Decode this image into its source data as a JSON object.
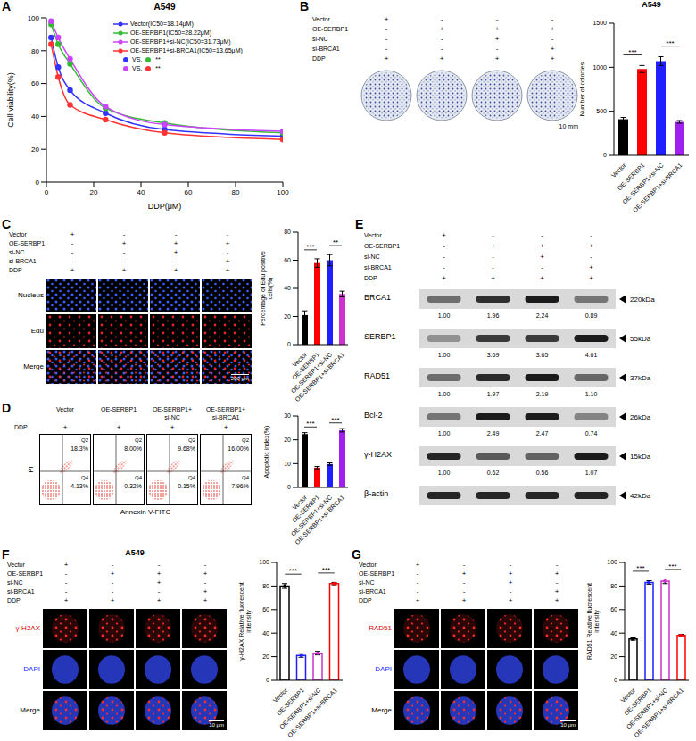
{
  "panel_letters": [
    "A",
    "B",
    "C",
    "D",
    "E",
    "F",
    "G"
  ],
  "conditions": [
    {
      "label": "Vector",
      "marks": [
        "+",
        "-",
        "-",
        "-"
      ]
    },
    {
      "label": "OE-SERBP1",
      "marks": [
        "-",
        "+",
        "+",
        "+"
      ]
    },
    {
      "label": "si-NC",
      "marks": [
        "-",
        "-",
        "+",
        "-"
      ]
    },
    {
      "label": "si-BRCA1",
      "marks": [
        "-",
        "-",
        "-",
        "+"
      ]
    },
    {
      "label": "DDP",
      "marks": [
        "+",
        "+",
        "+",
        "+"
      ]
    }
  ],
  "chart_data": [
    {
      "type": "line",
      "title": "A549",
      "x_label": "DDP(μM)",
      "y_label": "Cell viability(%)",
      "x": [
        2,
        5,
        10,
        25,
        50,
        100
      ],
      "xlim": [
        0,
        100
      ],
      "xticks": [
        0,
        20,
        40,
        60,
        80,
        100
      ],
      "ylim": [
        0,
        100
      ],
      "yticks": [
        0,
        20,
        40,
        60,
        80,
        100
      ],
      "grid": false,
      "legend": "top-right",
      "marker": "circle",
      "series": [
        {
          "name": "Vector(IC50=18.14μM)",
          "color": "#3333ff",
          "values": [
            88,
            70,
            56,
            42,
            32,
            28
          ]
        },
        {
          "name": "OE-SERBP1(IC50=28.22μM)",
          "color": "#33bb33",
          "values": [
            96,
            84,
            72,
            45,
            36,
            30
          ]
        },
        {
          "name": "OE-SERBP1+si-NC(IC50=31.73μM)",
          "color": "#cc44ff",
          "values": [
            98,
            88,
            75,
            46,
            35,
            31
          ]
        },
        {
          "name": "OE-SERBP1+si-BRCA1(IC50=13.65μM)",
          "color": "#ff3333",
          "values": [
            84,
            64,
            47,
            38,
            30,
            26
          ]
        }
      ],
      "comparisons": [
        {
          "left": "Vector(IC50=18.14μM)",
          "text": "VS.",
          "right": "OE-SERBP1(IC50=28.22μM)",
          "label": "**"
        },
        {
          "left": "OE-SERBP1+si-NC(IC50=31.73μM)",
          "text": "VS.",
          "right": "OE-SERBP1+si-BRCA1(IC50=13.65μM)",
          "label": "**"
        }
      ]
    },
    {
      "type": "bar",
      "title": "A549",
      "y_label": "Number of colonies",
      "categories": [
        "Vector",
        "OE-SERBP1",
        "OE-SERBP1+si-NC",
        "OE-SERBP1+si-BRCA1"
      ],
      "values": [
        410,
        980,
        1070,
        380
      ],
      "errors": [
        20,
        40,
        50,
        15
      ],
      "colors": [
        "#000000",
        "#ff0000",
        "#1f1fff",
        "#a020f0"
      ],
      "ylim": [
        0,
        1500
      ],
      "yticks": [
        0,
        500,
        1000,
        1500
      ],
      "grid": false,
      "significance": [
        {
          "between": [
            "Vector",
            "OE-SERBP1"
          ],
          "label": "***"
        },
        {
          "between": [
            "OE-SERBP1+si-NC",
            "OE-SERBP1+si-BRCA1"
          ],
          "label": "***"
        }
      ]
    },
    {
      "type": "bar",
      "y_label": "Percentage of Edu positive cells(%)",
      "categories": [
        "Vector",
        "OE-SERBP1",
        "OE-SERBP1+si-NC",
        "OE-SERBP1+si-BRCA1"
      ],
      "values": [
        21,
        58,
        60,
        36
      ],
      "errors": [
        3,
        3,
        4,
        2
      ],
      "colors": [
        "#000000",
        "#ff0000",
        "#1f1fff",
        "#cc33cc"
      ],
      "ylim": [
        0,
        80
      ],
      "yticks": [
        0,
        20,
        40,
        60,
        80
      ],
      "grid": false,
      "significance": [
        {
          "between": [
            "Vector",
            "OE-SERBP1"
          ],
          "label": "***"
        },
        {
          "between": [
            "OE-SERBP1+si-NC",
            "OE-SERBP1+si-BRCA1"
          ],
          "label": "**"
        }
      ]
    },
    {
      "type": "bar",
      "y_label": "Apoptotic index(%)",
      "categories": [
        "Vector",
        "OE-SERBP1",
        "OE-SERBP1+si-NC",
        "OE-SERBP1+si-BRCA1"
      ],
      "values": [
        22.4,
        8.3,
        9.8,
        24
      ],
      "errors": [
        0.6,
        0.5,
        0.5,
        0.7
      ],
      "colors": [
        "#000000",
        "#ff0000",
        "#1f1fff",
        "#a020f0"
      ],
      "ylim": [
        0,
        30
      ],
      "yticks": [
        0,
        10,
        20,
        30
      ],
      "grid": false,
      "significance": [
        {
          "between": [
            "Vector",
            "OE-SERBP1"
          ],
          "label": "***"
        },
        {
          "between": [
            "OE-SERBP1+si-NC",
            "OE-SERBP1+si-BRCA1"
          ],
          "label": "***"
        }
      ]
    },
    {
      "type": "bar",
      "y_label": "γ-H2AX Relative fluorescent intensity",
      "categories": [
        "Vector",
        "OE-SERBP1",
        "OE-SERBP1+si-NC",
        "OE-SERBP1+si-BRCA1"
      ],
      "values": [
        80,
        21,
        23,
        82
      ],
      "errors": [
        2,
        1.5,
        1.5,
        1
      ],
      "colors": [
        "#000000",
        "#1f1fff",
        "#cc33cc",
        "#ff0000"
      ],
      "marker": "circle",
      "ylim": [
        0,
        100
      ],
      "yticks": [
        0,
        20,
        40,
        60,
        80,
        100
      ],
      "grid": false,
      "significance": [
        {
          "between": [
            "Vector",
            "OE-SERBP1"
          ],
          "label": "***"
        },
        {
          "between": [
            "OE-SERBP1+si-NC",
            "OE-SERBP1+si-BRCA1"
          ],
          "label": "***"
        }
      ]
    },
    {
      "type": "bar",
      "y_label": "RAD51 Relative fluorescent intensity",
      "categories": [
        "Vector",
        "OE-SERBP1",
        "OE-SERBP1+si-NC",
        "OE-SERBP1+si-BRCA1"
      ],
      "values": [
        35,
        83,
        84,
        38
      ],
      "errors": [
        1,
        1.5,
        2,
        1
      ],
      "colors": [
        "#000000",
        "#1f1fff",
        "#cc33cc",
        "#ff0000"
      ],
      "marker": "circle",
      "ylim": [
        0,
        100
      ],
      "yticks": [
        0,
        20,
        40,
        60,
        80,
        100
      ],
      "grid": false,
      "significance": [
        {
          "between": [
            "Vector",
            "OE-SERBP1"
          ],
          "label": "***"
        },
        {
          "between": [
            "OE-SERBP1+si-NC",
            "OE-SERBP1+si-BRCA1"
          ],
          "label": "***"
        }
      ]
    }
  ],
  "colony": {
    "scale_bar": "10 mm"
  },
  "edu": {
    "rows": [
      "Nucleus",
      "Edu",
      "Merge"
    ],
    "scale_bar": "200 μm"
  },
  "flow": {
    "treatment": "DDP",
    "mark": "+",
    "x_label": "Annexin V-FITC",
    "y_label": "PI",
    "plots": [
      {
        "title": "Vector",
        "quadrants": [
          {
            "name": "Q2",
            "value": "18.3%"
          },
          {
            "name": "Q4",
            "value": "4.13%"
          }
        ]
      },
      {
        "title": "OE-SERBP1",
        "quadrants": [
          {
            "name": "Q2",
            "value": "8.00%"
          },
          {
            "name": "Q4",
            "value": "0.32%"
          }
        ]
      },
      {
        "title": "OE-SERBP1+si-NC",
        "quadrants": [
          {
            "name": "Q2",
            "value": "9.68%"
          },
          {
            "name": "Q4",
            "value": "0.15%"
          }
        ]
      },
      {
        "title": "OE-SERBP1+si-BRCA1",
        "quadrants": [
          {
            "name": "Q2",
            "value": "16.00%"
          },
          {
            "name": "Q4",
            "value": "7.96%"
          }
        ]
      }
    ]
  },
  "blot": {
    "bands": [
      {
        "name": "BRCA1",
        "size": "220kDa",
        "values": [
          1,
          1.96,
          2.24,
          0.89
        ],
        "value_labels": [
          "1.00",
          "1.96",
          "2.24",
          "0.89"
        ]
      },
      {
        "name": "SERBP1",
        "size": "55kDa",
        "values": [
          1,
          3.69,
          3.65,
          4.61
        ],
        "value_labels": [
          "1.00",
          "3.69",
          "3.65",
          "4.61"
        ]
      },
      {
        "name": "RAD51",
        "size": "37kDa",
        "values": [
          1,
          1.97,
          2.19,
          1.1
        ],
        "value_labels": [
          "1.00",
          "1.97",
          "2.19",
          "1.10"
        ]
      },
      {
        "name": "Bcl-2",
        "size": "26kDa",
        "values": [
          1,
          2.49,
          2.47,
          0.74
        ],
        "value_labels": [
          "1.00",
          "2.49",
          "2.47",
          "0.74"
        ]
      },
      {
        "name": "γ-H2AX",
        "size": "15kDa",
        "values": [
          1,
          0.62,
          0.56,
          1.07
        ],
        "value_labels": [
          "1.00",
          "0.62",
          "0.56",
          "1.07"
        ]
      },
      {
        "name": "β-actin",
        "size": "42kDa"
      }
    ]
  },
  "if_f": {
    "title": "A549",
    "rows": [
      "γ-H2AX",
      "DAPI",
      "Merge"
    ],
    "scale_bar": "10 μm"
  },
  "if_g": {
    "rows": [
      "RAD51",
      "DAPI",
      "Merge"
    ],
    "scale_bar": "10 μm"
  }
}
